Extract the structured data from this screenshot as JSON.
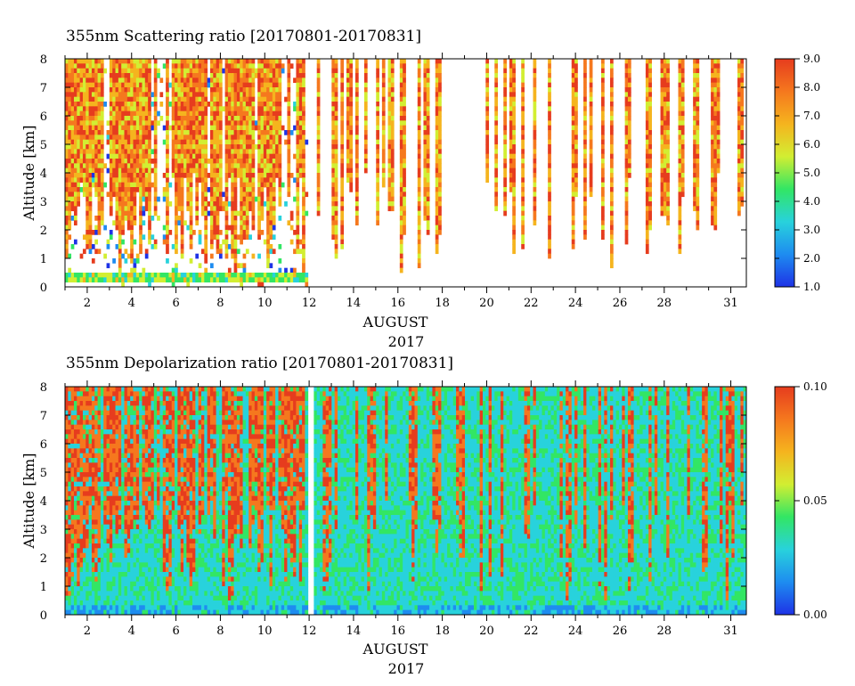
{
  "chart_data": [
    {
      "type": "heatmap",
      "title": "355nm Scattering ratio [20170801-20170831]",
      "ylabel": "Altitude [km]",
      "xlabel": "AUGUST",
      "xlabel2": "2017",
      "xlim": [
        1,
        31.7
      ],
      "ylim": [
        0,
        8
      ],
      "x_ticks": [
        2,
        4,
        6,
        8,
        10,
        12,
        14,
        16,
        18,
        20,
        22,
        24,
        26,
        28,
        31
      ],
      "x_tick_labels": [
        "2",
        "4",
        "6",
        "8",
        "10",
        "12",
        "14",
        "16",
        "18",
        "20",
        "22",
        "24",
        "26",
        "28",
        "31"
      ],
      "y_ticks": [
        0,
        1,
        2,
        3,
        4,
        5,
        6,
        7,
        8
      ],
      "y_tick_labels": [
        "0",
        "1",
        "2",
        "3",
        "4",
        "5",
        "6",
        "7",
        "8"
      ],
      "colorbar": {
        "min": 1.0,
        "max": 9.0,
        "ticks": [
          1.0,
          2.0,
          3.0,
          4.0,
          5.0,
          6.0,
          7.0,
          8.0,
          9.0
        ],
        "tick_labels": [
          "1.0",
          "2.0",
          "3.0",
          "4.0",
          "5.0",
          "6.0",
          "7.0",
          "8.0",
          "9.0"
        ],
        "colors": [
          "#1e32e6",
          "#1e8cf0",
          "#28d2dc",
          "#32e664",
          "#d2ee32",
          "#f5b41e",
          "#f5781e",
          "#e63c1e"
        ]
      },
      "colormap": "rainbow (blue to red)",
      "no_data_color": "#ffffff"
    },
    {
      "type": "heatmap",
      "title": "355nm Depolarization ratio [20170801-20170831]",
      "ylabel": "Altitude [km]",
      "xlabel": "AUGUST",
      "xlabel2": "2017",
      "xlim": [
        1,
        31.7
      ],
      "ylim": [
        0,
        8
      ],
      "x_ticks": [
        2,
        4,
        6,
        8,
        10,
        12,
        14,
        16,
        18,
        20,
        22,
        24,
        26,
        28,
        31
      ],
      "x_tick_labels": [
        "2",
        "4",
        "6",
        "8",
        "10",
        "12",
        "14",
        "16",
        "18",
        "20",
        "22",
        "24",
        "26",
        "28",
        "31"
      ],
      "y_ticks": [
        0,
        1,
        2,
        3,
        4,
        5,
        6,
        7,
        8
      ],
      "y_tick_labels": [
        "0",
        "1",
        "2",
        "3",
        "4",
        "5",
        "6",
        "7",
        "8"
      ],
      "colorbar": {
        "min": 0.0,
        "max": 0.1,
        "ticks": [
          0.0,
          0.05,
          0.1
        ],
        "tick_labels": [
          "0.00",
          "0.05",
          "0.10"
        ],
        "colors": [
          "#1e32e6",
          "#1e8cf0",
          "#28d2dc",
          "#32e664",
          "#d2ee32",
          "#f5b41e",
          "#f5781e",
          "#e63c1e"
        ]
      },
      "colormap": "rainbow (blue to red)",
      "no_data_color": "#ffffff"
    }
  ]
}
